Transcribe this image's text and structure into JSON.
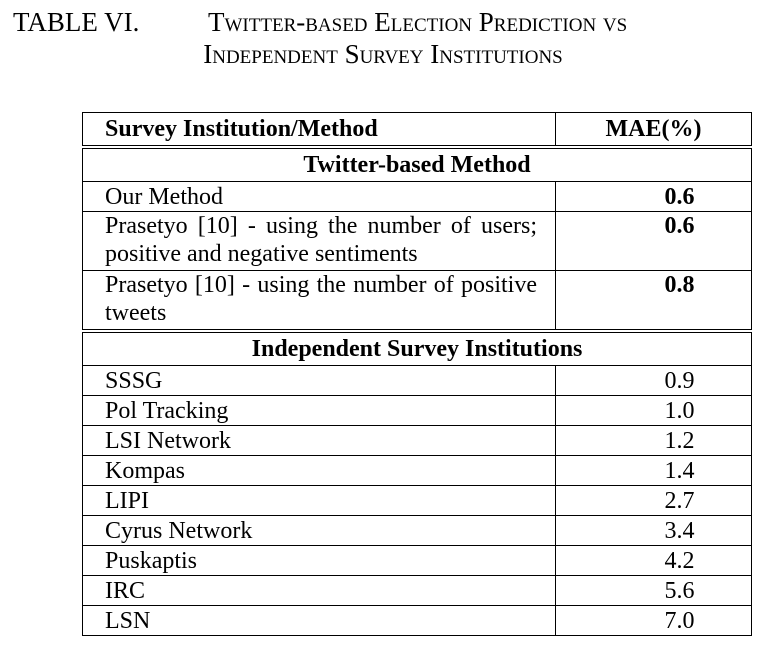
{
  "caption": {
    "label": "TABLE VI.",
    "title_line1": "Twitter-based Election Prediction vs",
    "title_line2": "Independent Survey Institutions"
  },
  "table": {
    "headers": [
      "Survey Institution/Method",
      "MAE(%)"
    ],
    "sections": [
      {
        "title": "Twitter-based Method",
        "rows": [
          {
            "method": "Our Method",
            "mae": "0.6",
            "bold": true
          },
          {
            "method": "Prasetyo [10] - using the number of users; positive and negative sentiments",
            "mae": "0.6",
            "bold": true
          },
          {
            "method": "Prasetyo [10] - using the number of positive tweets",
            "mae": "0.8",
            "bold": true
          }
        ]
      },
      {
        "title": "Independent Survey Institutions",
        "rows": [
          {
            "method": "SSSG",
            "mae": "0.9"
          },
          {
            "method": "Pol Tracking",
            "mae": "1.0"
          },
          {
            "method": "LSI Network",
            "mae": "1.2"
          },
          {
            "method": "Kompas",
            "mae": "1.4"
          },
          {
            "method": "LIPI",
            "mae": "2.7"
          },
          {
            "method": "Cyrus Network",
            "mae": "3.4"
          },
          {
            "method": "Puskaptis",
            "mae": "4.2"
          },
          {
            "method": "IRC",
            "mae": "5.6"
          },
          {
            "method": "LSN",
            "mae": "7.0"
          }
        ]
      }
    ]
  }
}
